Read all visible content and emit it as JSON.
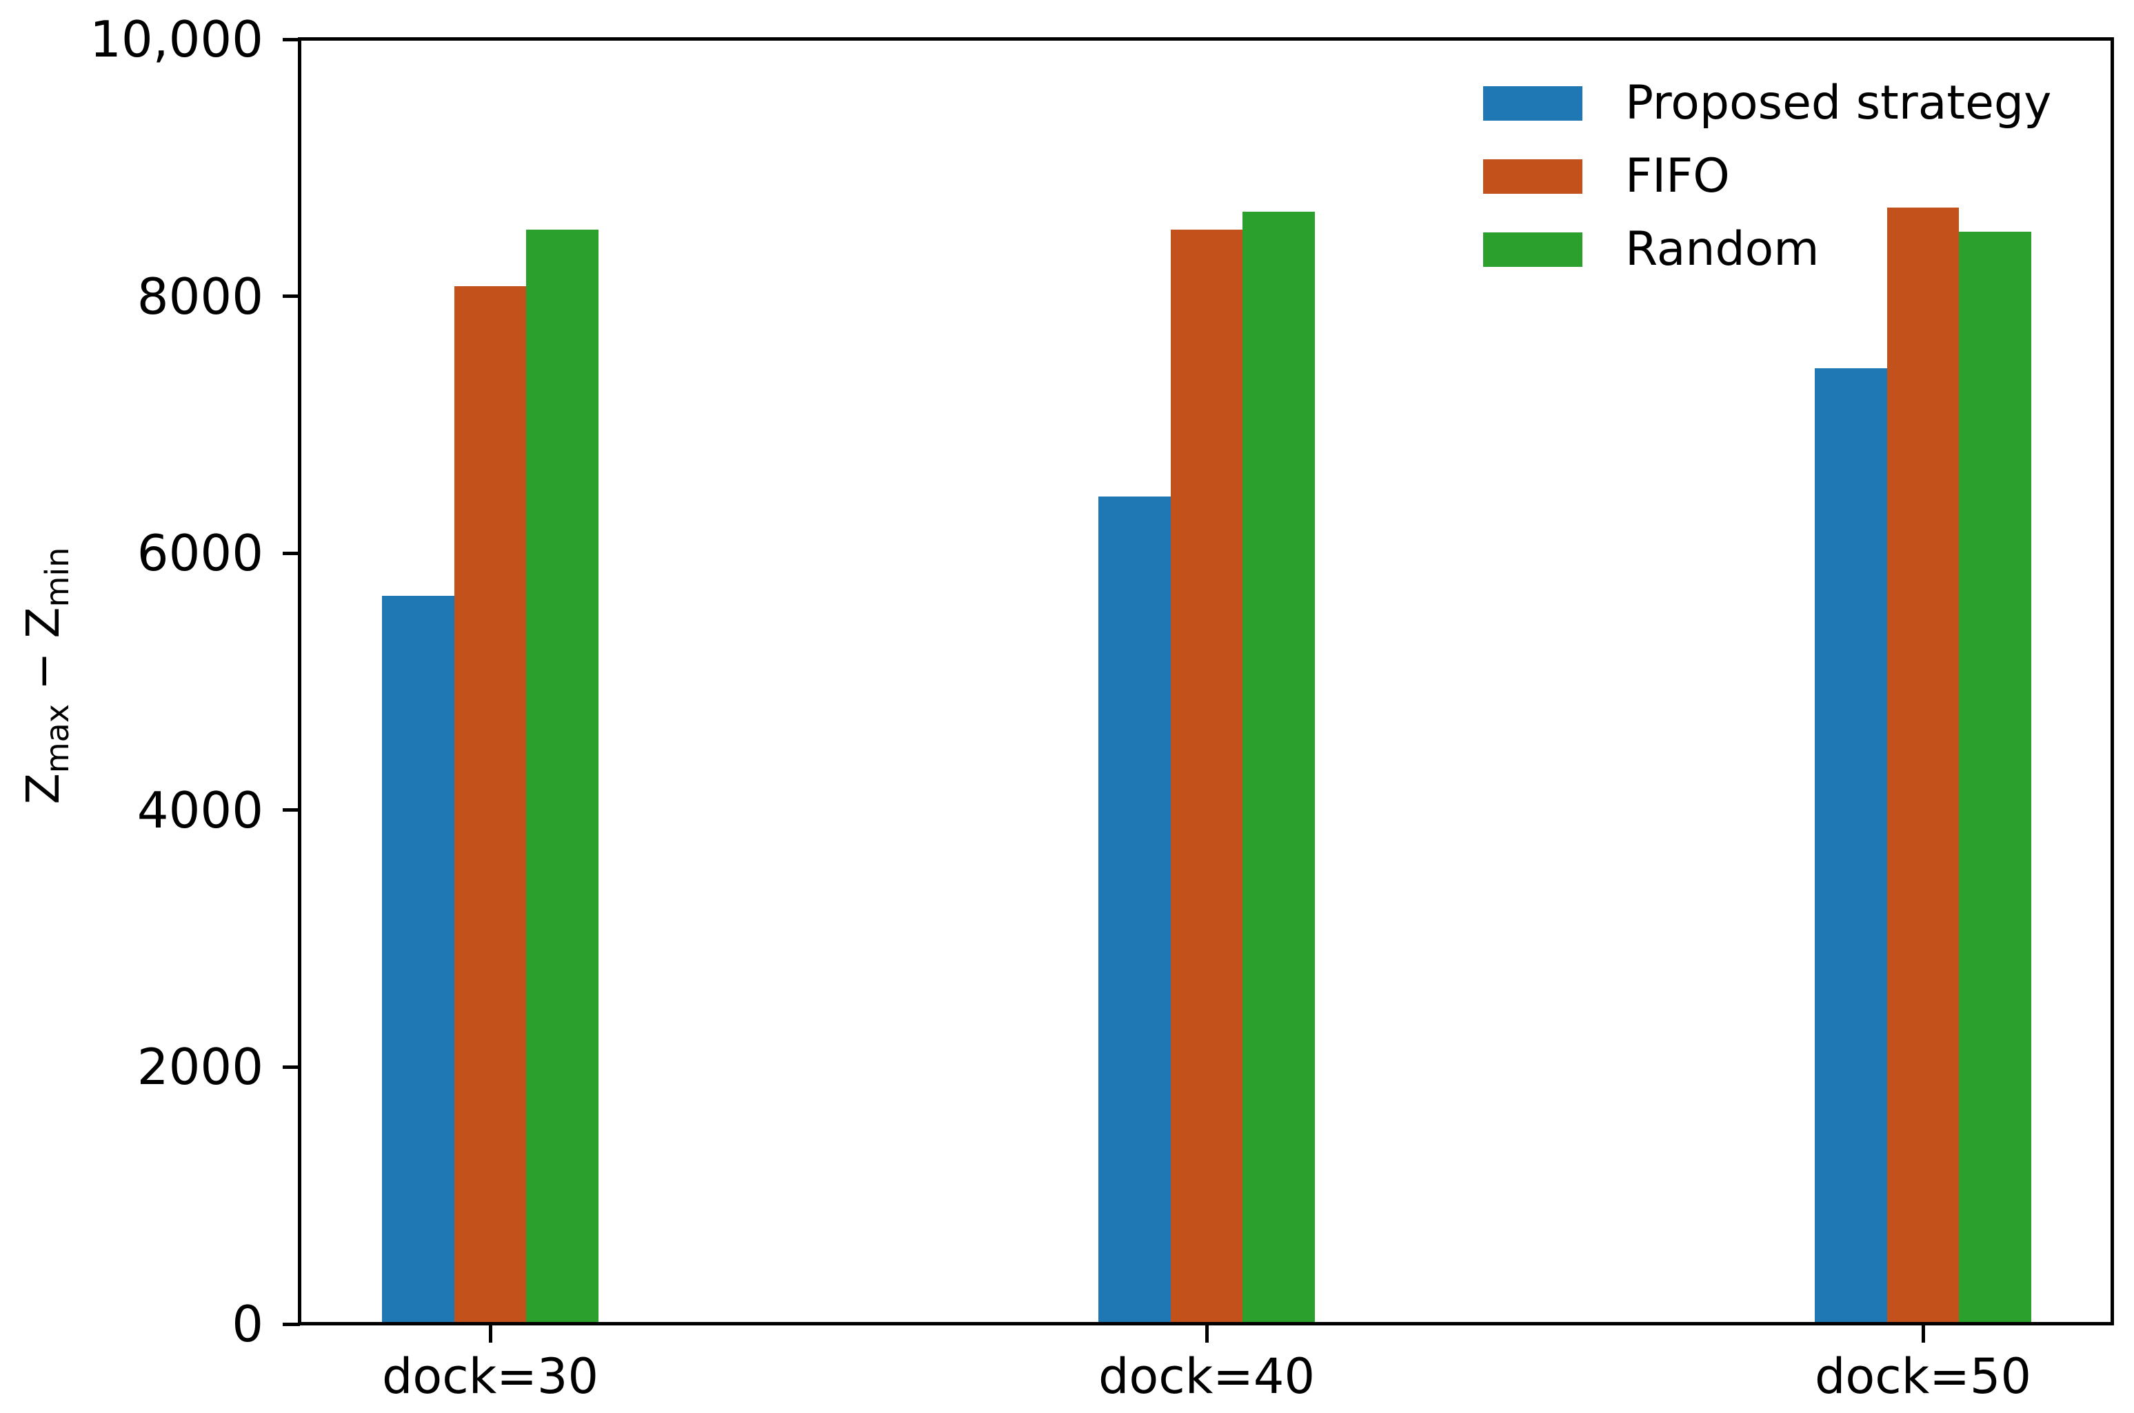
{
  "colors": {
    "background": "#ffffff",
    "axis": "#000000",
    "text": "#000000"
  },
  "chart_data": {
    "type": "bar",
    "title": "",
    "xlabel": "",
    "ylabel": "Z_max − Z_min",
    "ylabel_parts": {
      "z1": "Z",
      "sub1": "max",
      "op": "−",
      "z2": "Z",
      "sub2": "min"
    },
    "categories": [
      "dock=30",
      "dock=40",
      "dock=50"
    ],
    "series": [
      {
        "name": "Proposed strategy",
        "color": "#1f77b4",
        "values": [
          5670,
          6440,
          7440
        ]
      },
      {
        "name": "FIFO",
        "color": "#c3511b",
        "values": [
          8080,
          8520,
          8690
        ]
      },
      {
        "name": "Random",
        "color": "#2ca02c",
        "values": [
          8520,
          8660,
          8500
        ]
      }
    ],
    "ylim": [
      0,
      10000
    ],
    "yticks": [
      0,
      2000,
      4000,
      6000,
      8000,
      10000
    ],
    "ytick_labels": [
      "0",
      "2000",
      "4000",
      "6000",
      "8000",
      "10,000"
    ],
    "grid": false,
    "legend_position": "upper right",
    "legend_frame": false
  }
}
